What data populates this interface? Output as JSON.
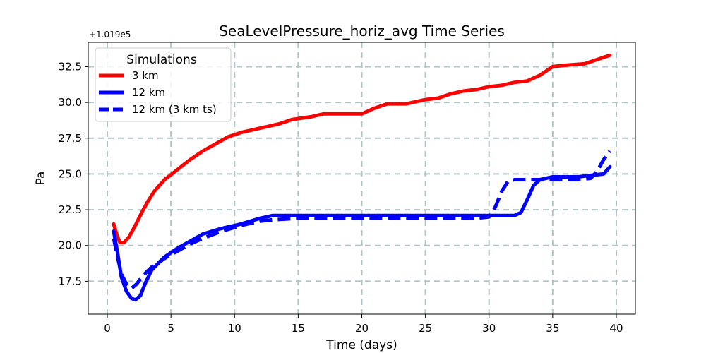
{
  "chart_data": {
    "type": "line",
    "title": "SeaLevelPressure_horiz_avg Time Series",
    "xlabel": "Time (days)",
    "ylabel": "Pa",
    "offset_text": "+1.019e5",
    "xlim": [
      -1.5,
      41.5
    ],
    "ylim": [
      15.2,
      34.2
    ],
    "xticks": [
      0,
      5,
      10,
      15,
      20,
      25,
      30,
      35,
      40
    ],
    "yticks": [
      17.5,
      20.0,
      22.5,
      25.0,
      27.5,
      30.0,
      32.5
    ],
    "ytick_labels": [
      "17.5",
      "20.0",
      "22.5",
      "25.0",
      "27.5",
      "30.0",
      "32.5"
    ],
    "grid": true,
    "legend": {
      "title": "Simulations",
      "position": "upper-left"
    },
    "series": [
      {
        "name": "3 km",
        "color": "#ff0000",
        "style": "solid",
        "points": [
          [
            0.5,
            21.5
          ],
          [
            0.8,
            20.6
          ],
          [
            1.0,
            20.2
          ],
          [
            1.3,
            20.2
          ],
          [
            1.7,
            20.6
          ],
          [
            2.2,
            21.4
          ],
          [
            2.7,
            22.3
          ],
          [
            3.2,
            23.1
          ],
          [
            3.7,
            23.8
          ],
          [
            4.5,
            24.6
          ],
          [
            5.5,
            25.3
          ],
          [
            6.5,
            26.0
          ],
          [
            7.5,
            26.6
          ],
          [
            8.5,
            27.1
          ],
          [
            9.5,
            27.6
          ],
          [
            10.5,
            27.9
          ],
          [
            12,
            28.2
          ],
          [
            13.5,
            28.5
          ],
          [
            14.5,
            28.8
          ],
          [
            16,
            29.0
          ],
          [
            17,
            29.2
          ],
          [
            18,
            29.2
          ],
          [
            20,
            29.2
          ],
          [
            21,
            29.6
          ],
          [
            22,
            29.9
          ],
          [
            23.5,
            29.9
          ],
          [
            25,
            30.2
          ],
          [
            26,
            30.3
          ],
          [
            27,
            30.6
          ],
          [
            28,
            30.8
          ],
          [
            29,
            30.9
          ],
          [
            30,
            31.1
          ],
          [
            31,
            31.2
          ],
          [
            32,
            31.4
          ],
          [
            33,
            31.5
          ],
          [
            34,
            31.9
          ],
          [
            35,
            32.5
          ],
          [
            36,
            32.6
          ],
          [
            37.5,
            32.7
          ],
          [
            39.5,
            33.3
          ]
        ]
      },
      {
        "name": "12 km",
        "color": "#0000ff",
        "style": "solid",
        "points": [
          [
            0.5,
            21.0
          ],
          [
            0.8,
            19.5
          ],
          [
            1.1,
            17.8
          ],
          [
            1.5,
            16.8
          ],
          [
            1.9,
            16.3
          ],
          [
            2.2,
            16.2
          ],
          [
            2.6,
            16.5
          ],
          [
            3.0,
            17.4
          ],
          [
            3.5,
            18.3
          ],
          [
            4.5,
            19.2
          ],
          [
            5.5,
            19.8
          ],
          [
            6.5,
            20.3
          ],
          [
            7.5,
            20.8
          ],
          [
            9,
            21.2
          ],
          [
            10.5,
            21.5
          ],
          [
            12,
            21.9
          ],
          [
            13,
            22.1
          ],
          [
            16,
            22.1
          ],
          [
            20,
            22.1
          ],
          [
            25,
            22.1
          ],
          [
            30,
            22.1
          ],
          [
            31,
            22.1
          ],
          [
            32,
            22.1
          ],
          [
            32.5,
            22.3
          ],
          [
            33,
            23.2
          ],
          [
            33.5,
            24.2
          ],
          [
            34,
            24.6
          ],
          [
            35,
            24.8
          ],
          [
            36,
            24.8
          ],
          [
            37,
            24.8
          ],
          [
            38,
            24.9
          ],
          [
            39,
            25.0
          ],
          [
            39.5,
            25.5
          ]
        ]
      },
      {
        "name": "12 km (3 km ts)",
        "color": "#0000ff",
        "style": "dashed",
        "points": [
          [
            0.5,
            20.5
          ],
          [
            0.8,
            19.2
          ],
          [
            1.1,
            18.0
          ],
          [
            1.5,
            17.3
          ],
          [
            1.9,
            17.0
          ],
          [
            2.3,
            17.3
          ],
          [
            2.8,
            17.9
          ],
          [
            3.5,
            18.5
          ],
          [
            4.5,
            19.1
          ],
          [
            5.5,
            19.6
          ],
          [
            6.5,
            20.1
          ],
          [
            7.5,
            20.5
          ],
          [
            9,
            21.0
          ],
          [
            10.5,
            21.4
          ],
          [
            12,
            21.7
          ],
          [
            13,
            21.8
          ],
          [
            15,
            21.9
          ],
          [
            20,
            21.9
          ],
          [
            25,
            21.9
          ],
          [
            29,
            21.9
          ],
          [
            30,
            22.0
          ],
          [
            30.5,
            22.7
          ],
          [
            31,
            23.8
          ],
          [
            31.5,
            24.5
          ],
          [
            32,
            24.6
          ],
          [
            34,
            24.6
          ],
          [
            35,
            24.6
          ],
          [
            36,
            24.6
          ],
          [
            37,
            24.6
          ],
          [
            38,
            24.7
          ],
          [
            38.5,
            25.2
          ],
          [
            39,
            26.0
          ],
          [
            39.5,
            26.6
          ]
        ]
      }
    ]
  }
}
